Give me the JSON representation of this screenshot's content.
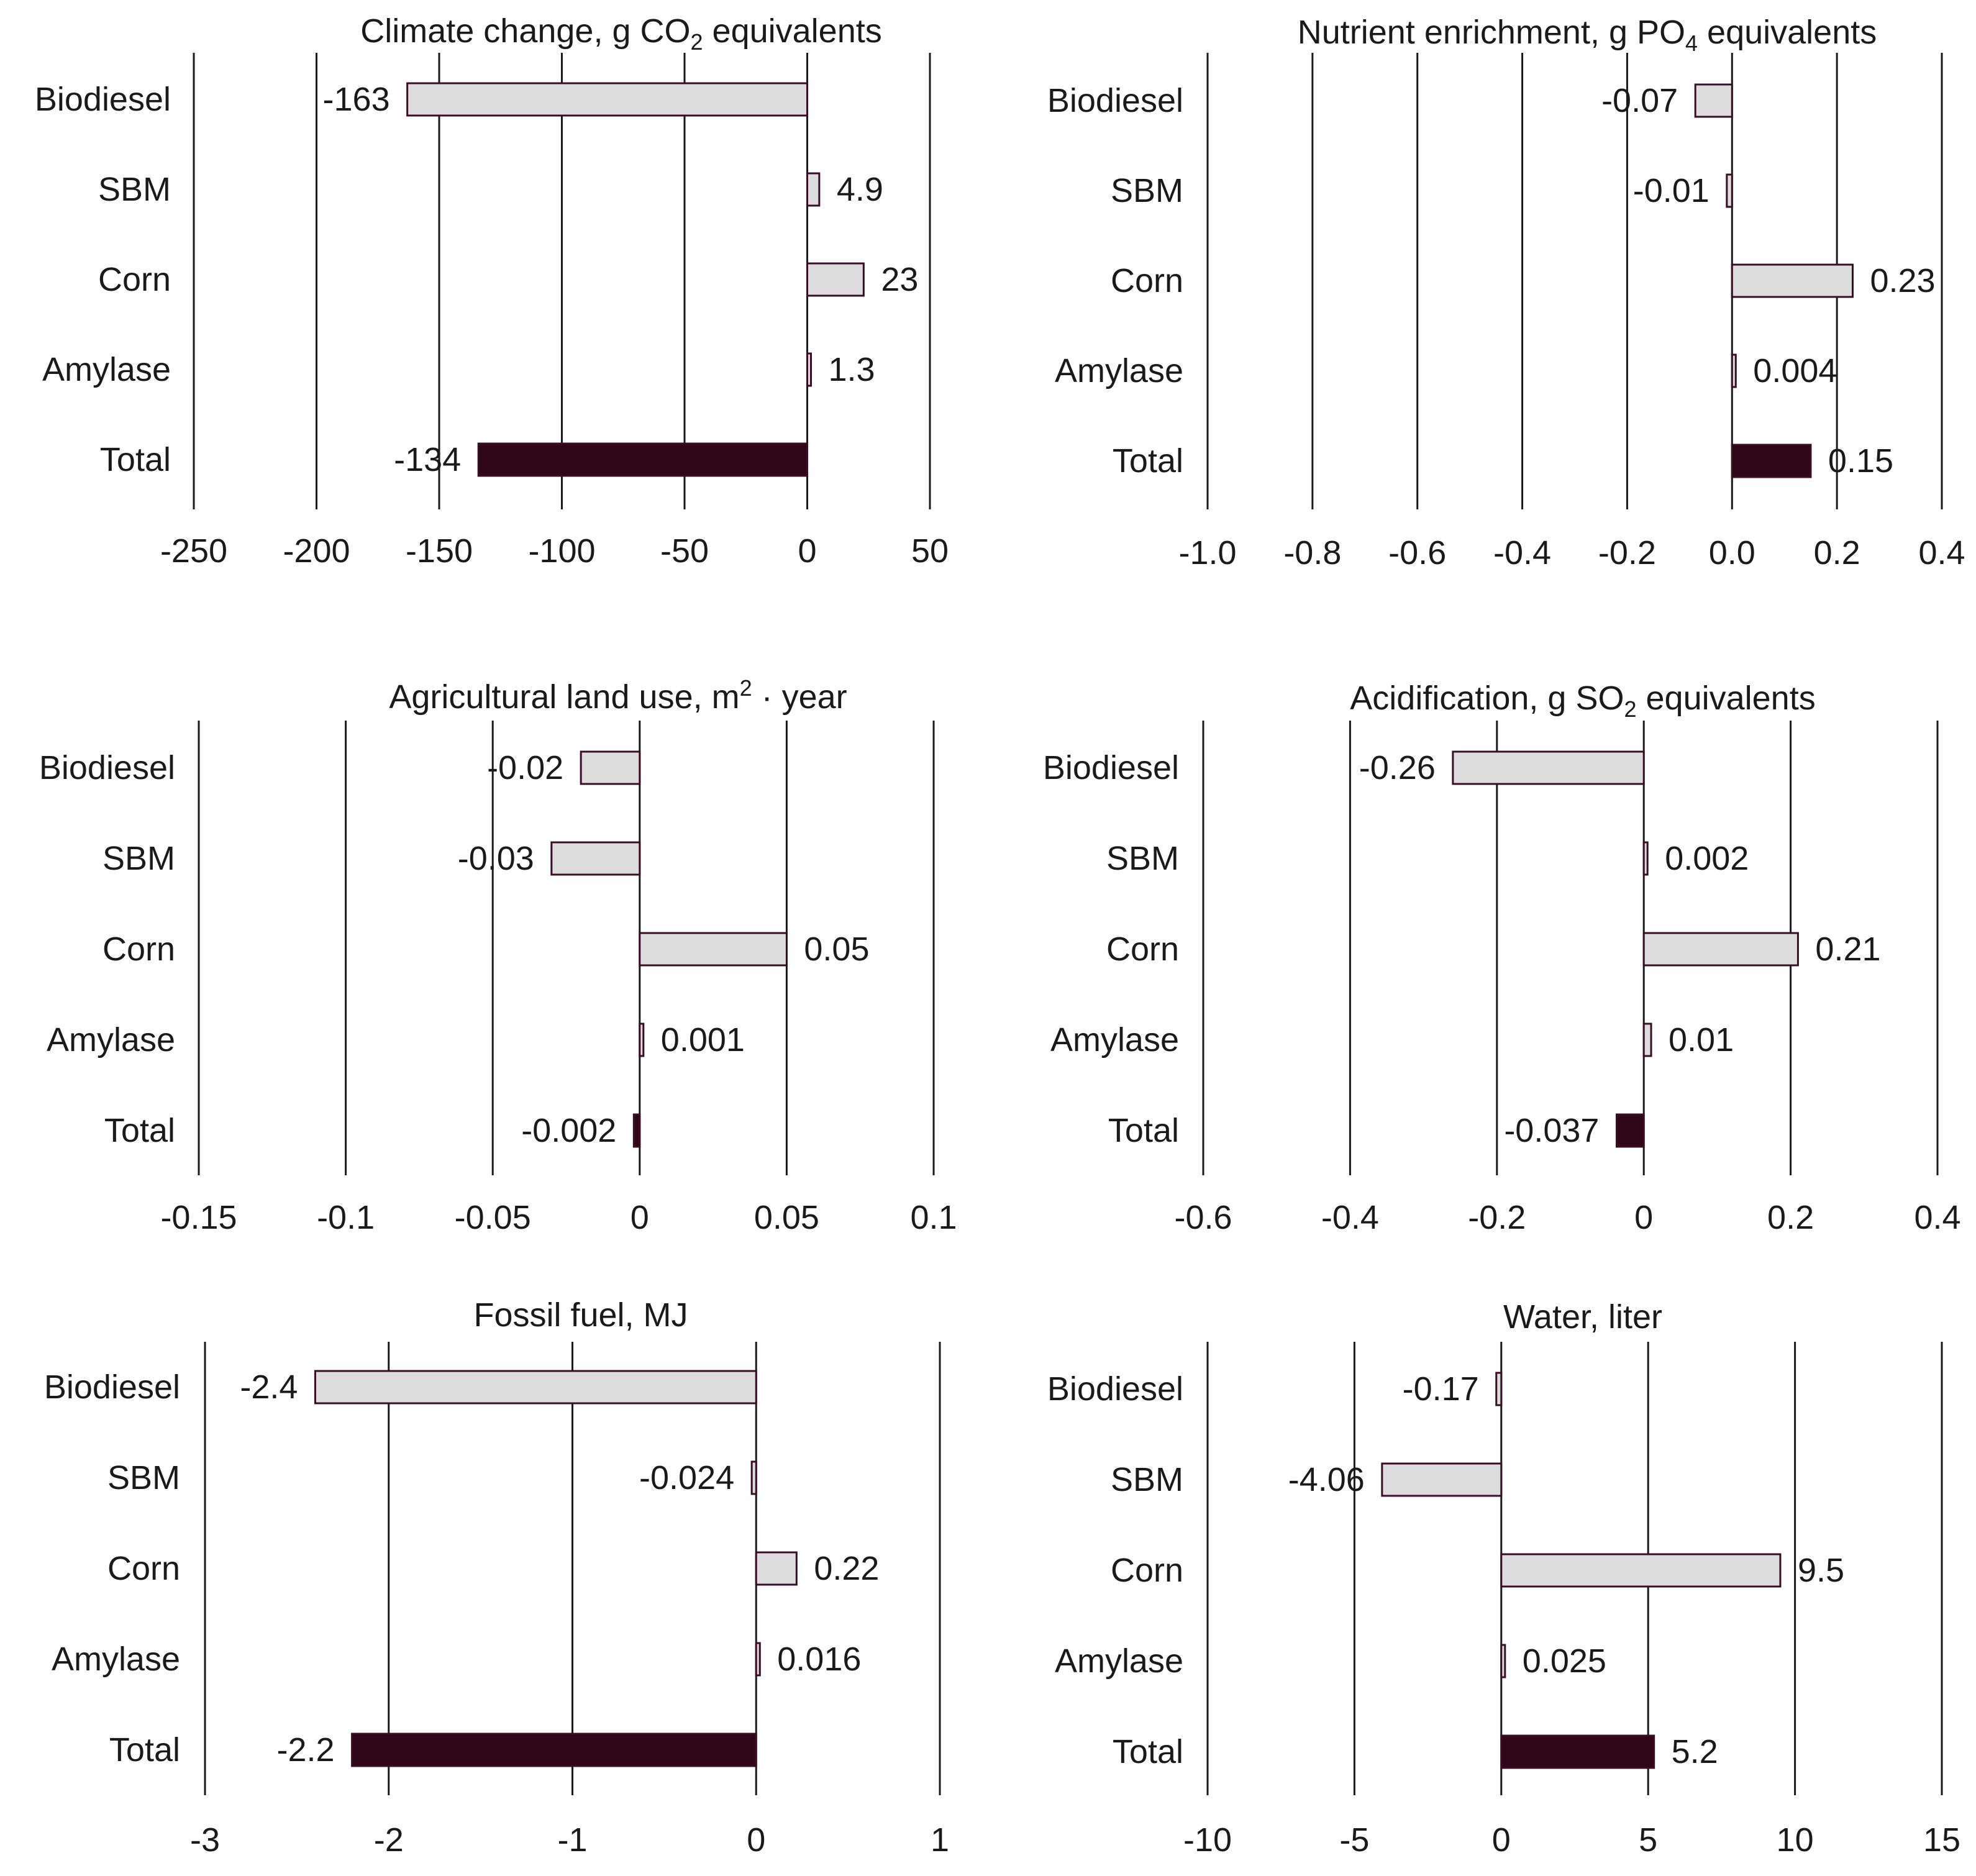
{
  "figure": {
    "categories": [
      "Biodiesel",
      "SBM",
      "Corn",
      "Amylase",
      "Total"
    ],
    "colors": {
      "bar_fill": "#dcdcdc",
      "bar_stroke": "#3a0d22",
      "total_fill": "#2e0618",
      "grid": "#1a1a1a",
      "text": "#1a1a1a"
    }
  },
  "chart_data": [
    {
      "type": "bar",
      "orientation": "horizontal",
      "title": {
        "pre": "Climate change, g CO",
        "sub": "2",
        "post": " equivalents"
      },
      "categories": [
        "Biodiesel",
        "SBM",
        "Corn",
        "Amylase",
        "Total"
      ],
      "values": [
        -163,
        4.9,
        23,
        1.3,
        -134
      ],
      "value_labels": [
        "-163",
        "4.9",
        "23",
        "1.3",
        "-134"
      ],
      "xlim": [
        -250,
        50
      ],
      "ticks": [
        -250,
        -200,
        -150,
        -100,
        -50,
        0,
        50
      ],
      "tick_labels": [
        "-250",
        "-200",
        "-150",
        "-100",
        "-50",
        "0",
        "50"
      ],
      "grid": true
    },
    {
      "type": "bar",
      "orientation": "horizontal",
      "title": {
        "pre": "Nutrient enrichment, g PO",
        "sub": "4",
        "post": " equivalents"
      },
      "categories": [
        "Biodiesel",
        "SBM",
        "Corn",
        "Amylase",
        "Total"
      ],
      "values": [
        -0.07,
        -0.01,
        0.23,
        0.004,
        0.15
      ],
      "value_labels": [
        "-0.07",
        "-0.01",
        "0.23",
        "0.004",
        "0.15"
      ],
      "xlim": [
        -1.0,
        0.4
      ],
      "ticks": [
        -1.0,
        -0.8,
        -0.6,
        -0.4,
        -0.2,
        0.0,
        0.2,
        0.4
      ],
      "tick_labels": [
        "-1.0",
        "-0.8",
        "-0.6",
        "-0.4",
        "-0.2",
        "0.0",
        "0.2",
        "0.4"
      ],
      "grid": true
    },
    {
      "type": "bar",
      "orientation": "horizontal",
      "title": {
        "pre": "Agricultural  land use, m",
        "sup": "2",
        "post": " · year"
      },
      "categories": [
        "Biodiesel",
        "SBM",
        "Corn",
        "Amylase",
        "Total"
      ],
      "values": [
        -0.02,
        -0.03,
        0.05,
        0.001,
        -0.002
      ],
      "value_labels": [
        "-0.02",
        "-0.03",
        "0.05",
        "0.001",
        "-0.002"
      ],
      "xlim": [
        -0.15,
        0.1
      ],
      "ticks": [
        -0.15,
        -0.1,
        -0.05,
        0,
        0.05,
        0.1
      ],
      "tick_labels": [
        "-0.15",
        "-0.1",
        "-0.05",
        "0",
        "0.05",
        "0.1"
      ],
      "grid": true
    },
    {
      "type": "bar",
      "orientation": "horizontal",
      "title": {
        "pre": "Acidification,  g SO",
        "sub": "2",
        "post": " equivalents"
      },
      "categories": [
        "Biodiesel",
        "SBM",
        "Corn",
        "Amylase",
        "Total"
      ],
      "values": [
        -0.26,
        0.002,
        0.21,
        0.01,
        -0.037
      ],
      "value_labels": [
        "-0.26",
        "0.002",
        "0.21",
        "0.01",
        "-0.037"
      ],
      "xlim": [
        -0.6,
        0.4
      ],
      "ticks": [
        -0.6,
        -0.4,
        -0.2,
        0,
        0.2,
        0.4
      ],
      "tick_labels": [
        "-0.6",
        "-0.4",
        "-0.2",
        "0",
        "0.2",
        "0.4"
      ],
      "grid": true
    },
    {
      "type": "bar",
      "orientation": "horizontal",
      "title": {
        "pre": "Fossil fuel, MJ"
      },
      "categories": [
        "Biodiesel",
        "SBM",
        "Corn",
        "Amylase",
        "Total"
      ],
      "values": [
        -2.4,
        -0.024,
        0.22,
        0.016,
        -2.2
      ],
      "value_labels": [
        "-2.4",
        "-0.024",
        "0.22",
        "0.016",
        "-2.2"
      ],
      "xlim": [
        -3,
        1
      ],
      "ticks": [
        -3,
        -2,
        -1,
        0,
        1
      ],
      "tick_labels": [
        "-3",
        "-2",
        "-1",
        "0",
        "1"
      ],
      "grid": true
    },
    {
      "type": "bar",
      "orientation": "horizontal",
      "title": {
        "pre": "Water, liter"
      },
      "categories": [
        "Biodiesel",
        "SBM",
        "Corn",
        "Amylase",
        "Total"
      ],
      "values": [
        -0.17,
        -4.06,
        9.5,
        0.025,
        5.2
      ],
      "value_labels": [
        "-0.17",
        "-4.06",
        "9.5",
        "0.025",
        "5.2"
      ],
      "xlim": [
        -10,
        15
      ],
      "ticks": [
        -10,
        -5,
        0,
        5,
        10,
        15
      ],
      "tick_labels": [
        "-10",
        "-5",
        "0",
        "5",
        "10",
        "15"
      ],
      "grid": true
    }
  ]
}
